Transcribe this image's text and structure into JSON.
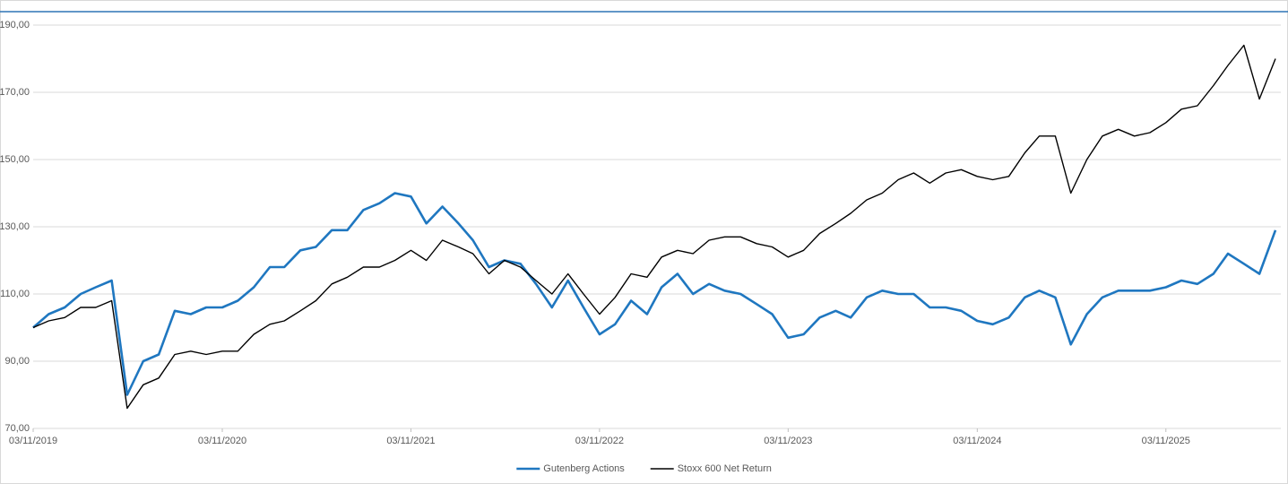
{
  "chart_data": {
    "type": "line",
    "x": [
      "03/11/2019",
      "03/12/2019",
      "03/01/2020",
      "03/02/2020",
      "03/03/2020",
      "03/04/2020",
      "03/05/2020",
      "03/06/2020",
      "03/07/2020",
      "03/08/2020",
      "03/09/2020",
      "03/10/2020",
      "03/11/2020",
      "03/12/2020",
      "03/01/2021",
      "03/02/2021",
      "03/03/2021",
      "03/04/2021",
      "03/05/2021",
      "03/06/2021",
      "03/07/2021",
      "03/08/2021",
      "03/09/2021",
      "03/10/2021",
      "03/11/2021",
      "03/12/2021",
      "03/01/2022",
      "03/02/2022",
      "03/03/2022",
      "03/04/2022",
      "03/05/2022",
      "03/06/2022",
      "03/07/2022",
      "03/08/2022",
      "03/09/2022",
      "03/10/2022",
      "03/11/2022",
      "03/12/2022",
      "03/01/2023",
      "03/02/2023",
      "03/03/2023",
      "03/04/2023",
      "03/05/2023",
      "03/06/2023",
      "03/07/2023",
      "03/08/2023",
      "03/09/2023",
      "03/10/2023",
      "03/11/2023",
      "03/12/2023",
      "03/01/2024",
      "03/02/2024",
      "03/03/2024",
      "03/04/2024",
      "03/05/2024",
      "03/06/2024",
      "03/07/2024",
      "03/08/2024",
      "03/09/2024",
      "03/10/2024",
      "03/11/2024",
      "03/12/2024",
      "03/01/2025",
      "03/02/2025",
      "03/03/2025",
      "03/04/2025",
      "03/05/2025",
      "03/06/2025",
      "03/07/2025",
      "03/08/2025",
      "03/09/2025",
      "03/10/2025",
      "03/11/2025",
      "03/12/2025",
      "03/01/2026",
      "03/02/2026",
      "03/03/2026",
      "03/04/2026",
      "03/05/2026",
      "03/06/2026"
    ],
    "series": [
      {
        "name": "Gutenberg Actions",
        "color": "#1f77c0",
        "width": 2.6,
        "values": [
          100,
          104,
          106,
          110,
          112,
          114,
          80,
          90,
          92,
          105,
          104,
          106,
          106,
          108,
          112,
          118,
          118,
          123,
          124,
          129,
          129,
          135,
          137,
          140,
          139,
          131,
          136,
          131,
          126,
          118,
          120,
          119,
          113,
          106,
          114,
          106,
          98,
          101,
          108,
          104,
          112,
          116,
          110,
          113,
          111,
          110,
          107,
          104,
          97,
          98,
          103,
          105,
          103,
          109,
          111,
          110,
          110,
          106,
          106,
          105,
          102,
          101,
          103,
          109,
          111,
          109,
          95,
          104,
          109,
          111,
          111,
          111,
          112,
          114,
          113,
          116,
          122,
          119,
          116,
          129
        ]
      },
      {
        "name": "Stoxx 600 Net Return",
        "color": "#000000",
        "width": 1.4,
        "values": [
          100,
          102,
          103,
          106,
          106,
          108,
          76,
          83,
          85,
          92,
          93,
          92,
          93,
          93,
          98,
          101,
          102,
          105,
          108,
          113,
          115,
          118,
          118,
          120,
          123,
          120,
          126,
          124,
          122,
          116,
          120,
          118,
          114,
          110,
          116,
          110,
          104,
          109,
          116,
          115,
          121,
          123,
          122,
          126,
          127,
          127,
          125,
          124,
          121,
          123,
          128,
          131,
          134,
          138,
          140,
          144,
          146,
          143,
          146,
          147,
          145,
          144,
          145,
          152,
          157,
          157,
          140,
          150,
          157,
          159,
          157,
          158,
          161,
          165,
          166,
          172,
          178,
          184,
          168,
          180
        ]
      }
    ],
    "ylim": [
      70,
      190
    ],
    "yticks": [
      {
        "value": 70,
        "label": "70,00"
      },
      {
        "value": 90,
        "label": "90,00"
      },
      {
        "value": 110,
        "label": "110,00"
      },
      {
        "value": 130,
        "label": "130,00"
      },
      {
        "value": 150,
        "label": "150,00"
      },
      {
        "value": 170,
        "label": "170,00"
      },
      {
        "value": 190,
        "label": "190,00"
      }
    ],
    "xlim": [
      "03/11/2019",
      "03/06/2026"
    ],
    "xticks": [
      "03/11/2019",
      "03/11/2020",
      "03/11/2021",
      "03/11/2022",
      "03/11/2023",
      "03/11/2024",
      "03/11/2025"
    ],
    "grid": true,
    "legend": "bottom"
  }
}
